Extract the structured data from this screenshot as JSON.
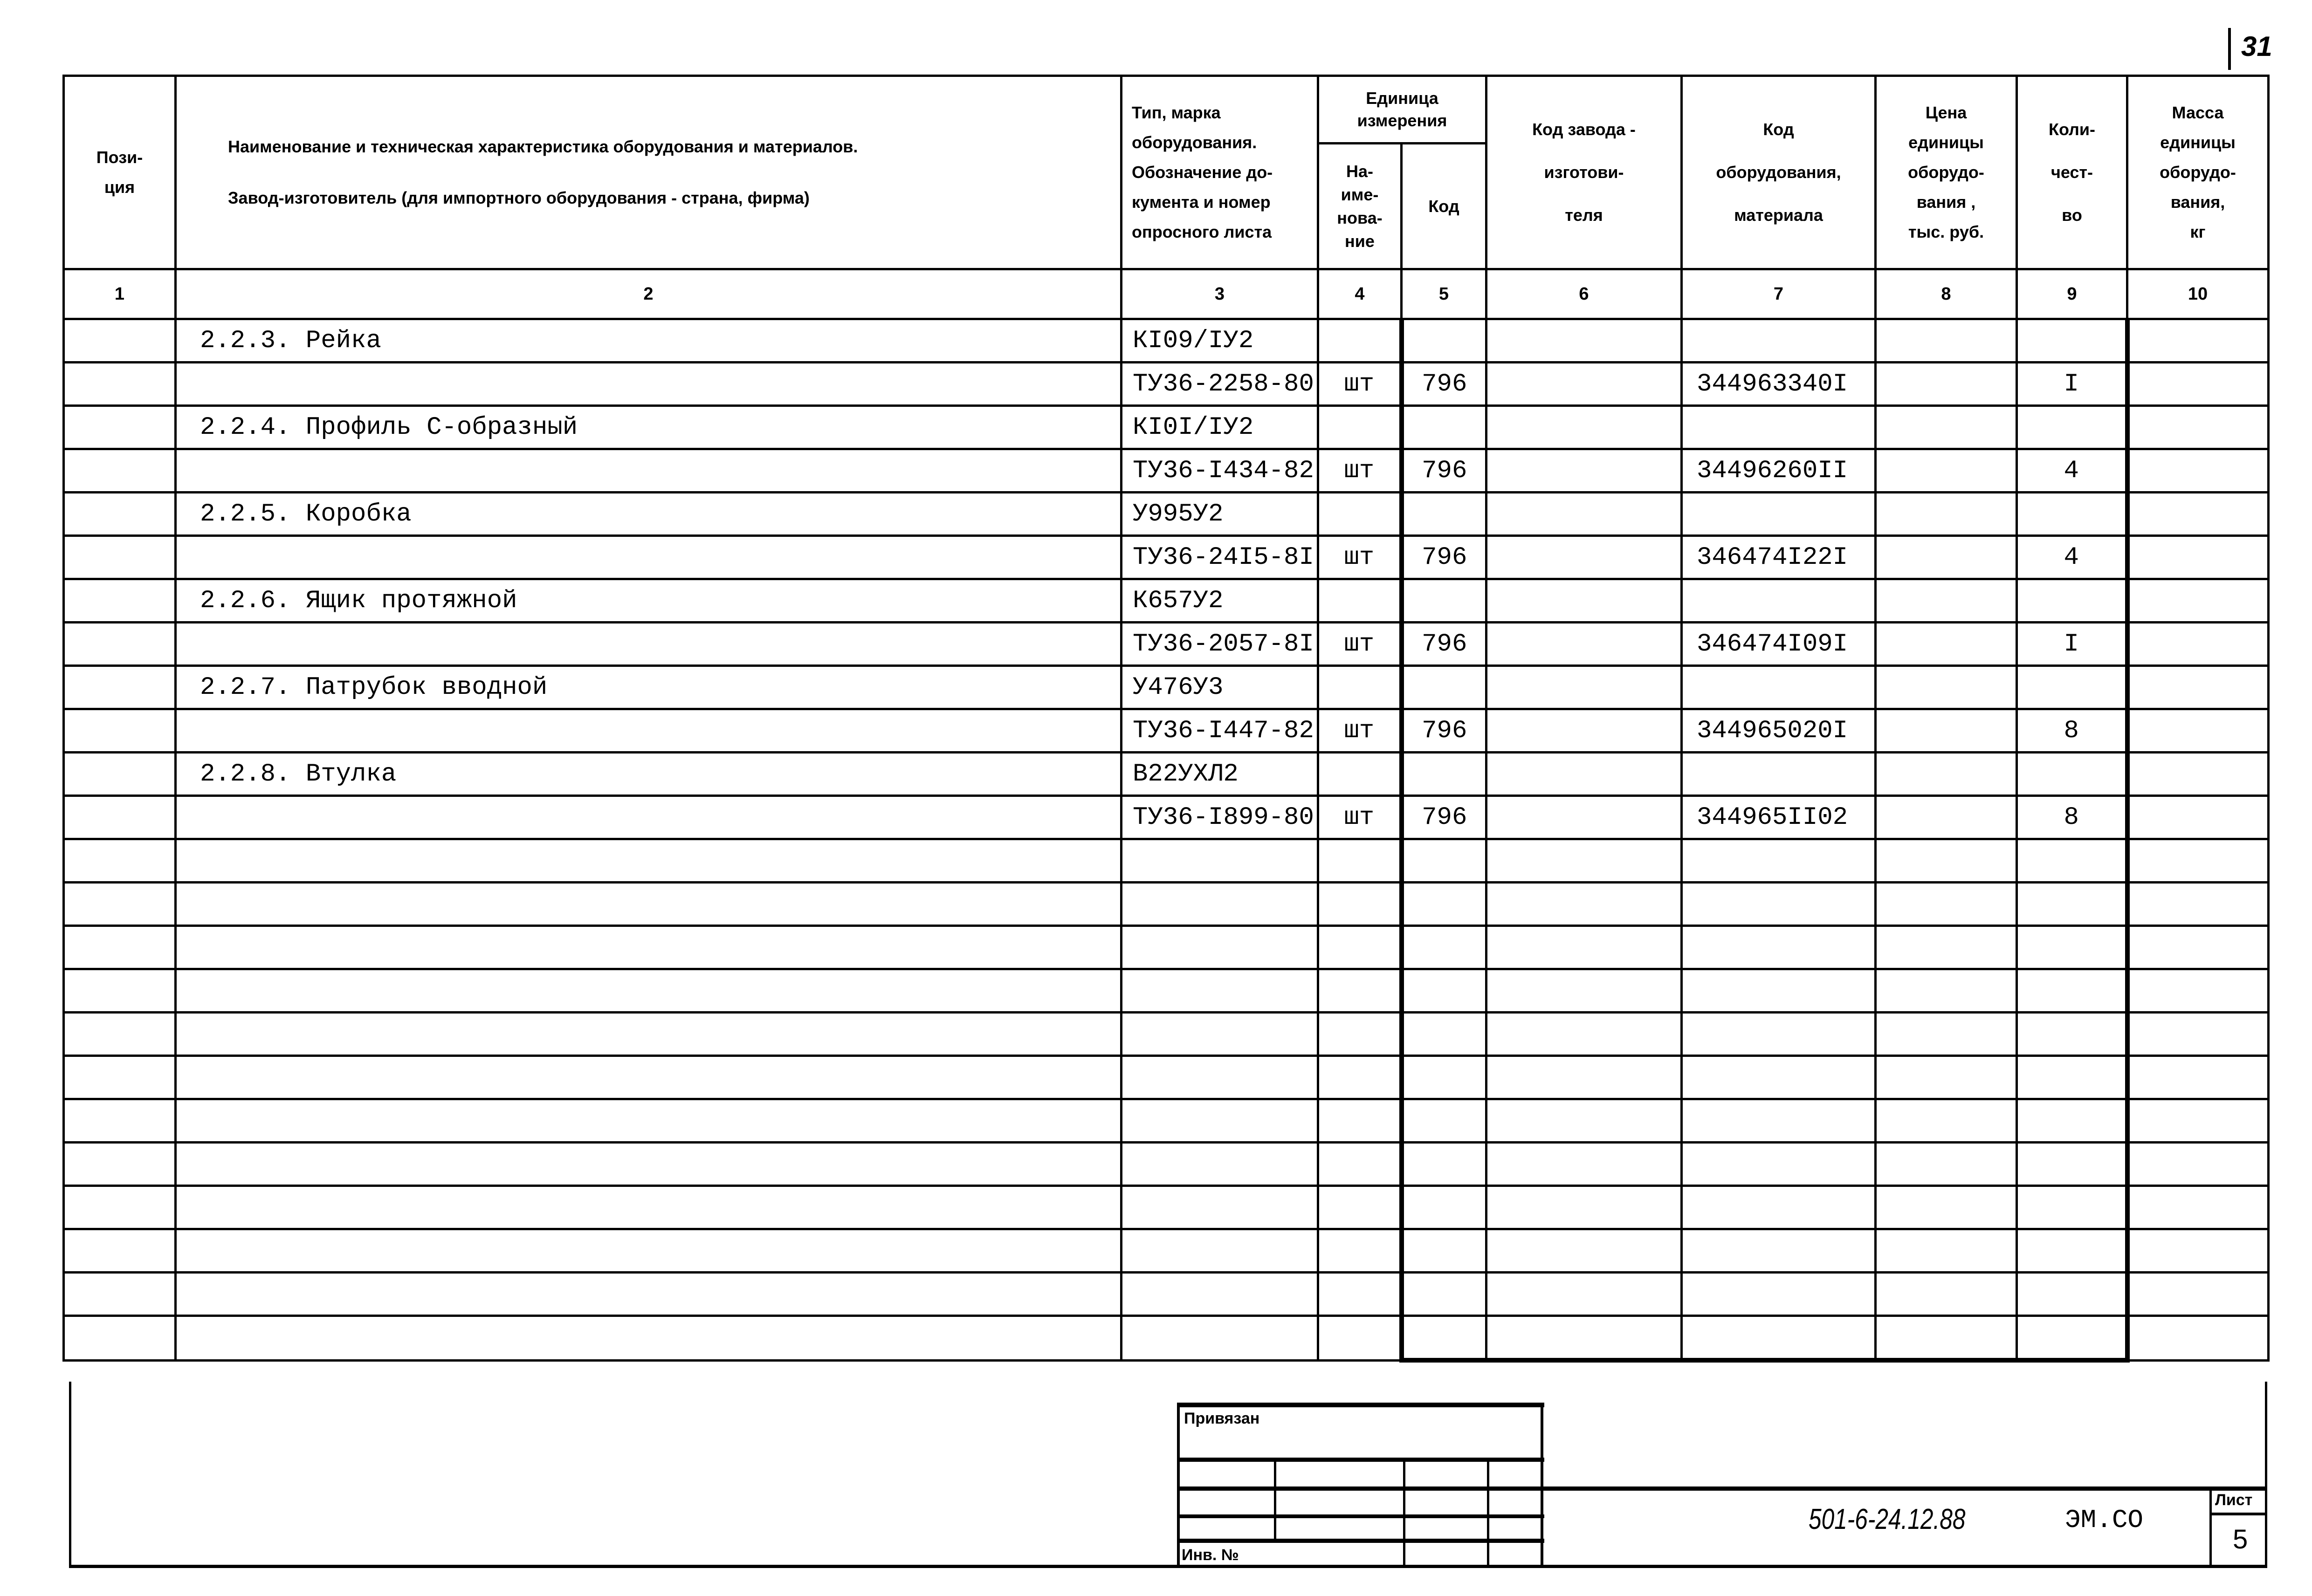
{
  "page_number_corner": "31",
  "header": {
    "col1": "Пози-\nция",
    "col2_line1": "Наименование и техническая характеристика  оборудования и материалов.",
    "col2_line2": "Завод-изготовитель  (для импортного оборудования -  страна, фирма)",
    "col3": "Тип,  марка\nоборудования.\nОбозначение до-\nкумента и номер\nопросного листа",
    "col45_group": "Единица\nизмерения",
    "col4": "На-\nиме-\nнова-\nние",
    "col5": "Код",
    "col6": "Код завода -\nизготови-\nтеля",
    "col7": "Код\nоборудования,\nматериала",
    "col8": "Цена\nединицы\nоборудо-\nвания ,\nтыс. руб.",
    "col9": "Коли-\nчест-\nво",
    "col10": "Масса\nединицы\nоборудо-\nвания,\nкг"
  },
  "column_numbers": [
    "1",
    "2",
    "3",
    "4",
    "5",
    "6",
    "7",
    "8",
    "9",
    "10"
  ],
  "rows": [
    {
      "name": "2.2.3. Рейка",
      "type": "КI09/IУ2",
      "unit": "",
      "unit_code": "",
      "factory_code": "",
      "code": "",
      "price": "",
      "qty": "",
      "mass": ""
    },
    {
      "name": "",
      "type": "ТУ36-2258-80",
      "unit": "шт",
      "unit_code": "796",
      "factory_code": "",
      "code": "344963340I",
      "price": "",
      "qty": "I",
      "mass": ""
    },
    {
      "name": "2.2.4. Профиль С-образный",
      "type": "КI0I/IУ2",
      "unit": "",
      "unit_code": "",
      "factory_code": "",
      "code": "",
      "price": "",
      "qty": "",
      "mass": ""
    },
    {
      "name": "",
      "type": "ТУ36-I434-82",
      "unit": "шт",
      "unit_code": "796",
      "factory_code": "",
      "code": "34496260II",
      "price": "",
      "qty": "4",
      "mass": ""
    },
    {
      "name": "2.2.5. Коробка",
      "type": " У995У2",
      "unit": "",
      "unit_code": "",
      "factory_code": "",
      "code": "",
      "price": "",
      "qty": "",
      "mass": ""
    },
    {
      "name": "",
      "type": "ТУ36-24I5-8I",
      "unit": "шт",
      "unit_code": "796",
      "factory_code": "",
      "code": "346474I22I",
      "price": "",
      "qty": "4",
      "mass": ""
    },
    {
      "name": "2.2.6. Ящик протяжной",
      "type": " К657У2",
      "unit": "",
      "unit_code": "",
      "factory_code": "",
      "code": "",
      "price": "",
      "qty": "",
      "mass": ""
    },
    {
      "name": "",
      "type": "ТУ36-2057-8I",
      "unit": "шт",
      "unit_code": "796",
      "factory_code": "",
      "code": "346474I09I",
      "price": "",
      "qty": "I",
      "mass": ""
    },
    {
      "name": "2.2.7. Патрубок вводной",
      "type": " У476У3",
      "unit": "",
      "unit_code": "",
      "factory_code": "",
      "code": "",
      "price": "",
      "qty": "",
      "mass": ""
    },
    {
      "name": "",
      "type": "ТУ36-I447-82",
      "unit": "шт",
      "unit_code": "796",
      "factory_code": "",
      "code": "344965020I",
      "price": "",
      "qty": "8",
      "mass": ""
    },
    {
      "name": "2.2.8. Втулка",
      "type": " В22УХЛ2",
      "unit": "",
      "unit_code": "",
      "factory_code": "",
      "code": "",
      "price": "",
      "qty": "",
      "mass": ""
    },
    {
      "name": "",
      "type": "ТУ36-I899-80",
      "unit": "шт",
      "unit_code": "796",
      "factory_code": "",
      "code": "344965II02",
      "price": "",
      "qty": "8",
      "mass": ""
    }
  ],
  "title_block": {
    "attached_label": "Привязан",
    "inv_label": "Инв. №",
    "doc_code": "501-6-24.12.88",
    "doc_suffix": "ЭМ.СО",
    "sheet_label": "Лист",
    "sheet_value": "5"
  }
}
